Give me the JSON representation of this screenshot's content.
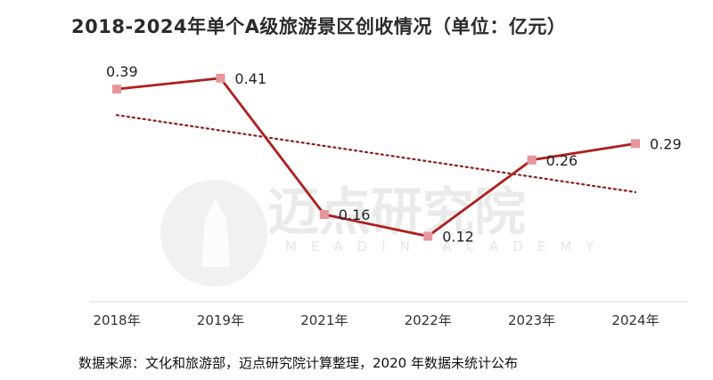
{
  "title": "2018-2024年单个A级旅游景区创收情况（单位：亿元）",
  "source": "数据来源：文化和旅游部，迈点研究院计算整理，2020 年数据未统计公布",
  "watermark": {
    "name": "迈点研究院",
    "sub": "MEADIN ACADEMY"
  },
  "chart_data": {
    "type": "line",
    "title": "2018-2024年单个A级旅游景区创收情况（单位：亿元）",
    "categories": [
      "2018年",
      "2019年",
      "2021年",
      "2022年",
      "2023年",
      "2024年"
    ],
    "series": [
      {
        "values": [
          0.39,
          0.41,
          0.16,
          0.12,
          0.26,
          0.29
        ]
      }
    ],
    "data_labels": [
      "0.39",
      "0.41",
      "0.16",
      "0.12",
      "0.26",
      "0.29"
    ],
    "trendline": {
      "type": "linear",
      "style": "dotted"
    },
    "ylim": [
      0,
      0.48
    ],
    "grid": false,
    "legend": "none",
    "colors": {
      "line": "#b01e1e",
      "marker": "#e7969c",
      "trend": "#8e1b1b",
      "axis": "#d9d9d9"
    }
  }
}
